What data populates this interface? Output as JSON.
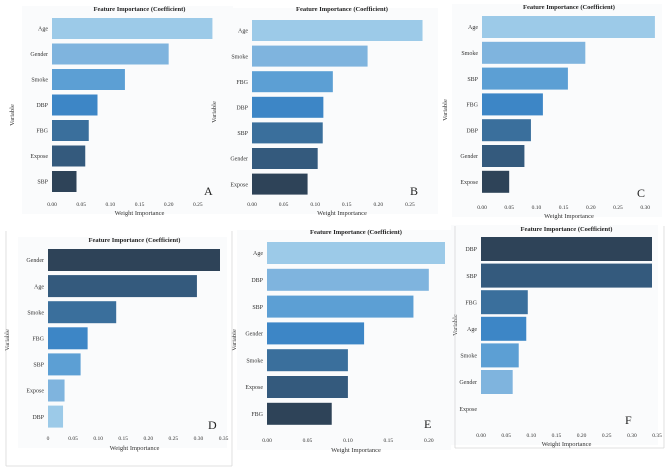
{
  "palette": [
    "#9ccae8",
    "#7fb4de",
    "#5c9fd4",
    "#3d86c6",
    "#3a6f9c",
    "#345a7d",
    "#2e4358"
  ],
  "chart_data": [
    {
      "type": "bar",
      "orientation": "horizontal",
      "panel_letter": "A",
      "title": "Feature Importance (Coefficient)",
      "xlabel": "Weight Importance",
      "ylabel": "Variable",
      "categories": [
        "Age",
        "Gender",
        "Smoke",
        "DBP",
        "FBG",
        "Expose",
        "SBP"
      ],
      "values": [
        0.275,
        0.2,
        0.125,
        0.078,
        0.063,
        0.057,
        0.042
      ],
      "xlim": [
        0,
        0.3
      ],
      "ticks": [
        0,
        0.05,
        0.1,
        0.15,
        0.2,
        0.25
      ],
      "tick_labels": [
        "0.00",
        "0.05",
        "0.10",
        "0.15",
        "0.20",
        "0.25"
      ],
      "bar_colors": [
        "#9ccae8",
        "#7fb4de",
        "#5c9fd4",
        "#3d86c6",
        "#3a6f9c",
        "#345a7d",
        "#2e4358"
      ]
    },
    {
      "type": "bar",
      "orientation": "horizontal",
      "panel_letter": "B",
      "title": "Feature Importance (Coefficient)",
      "xlabel": "Weight Importance",
      "ylabel": "Variable",
      "categories": [
        "Age",
        "Smoke",
        "FBG",
        "DBP",
        "SBP",
        "Gender",
        "Expose"
      ],
      "values": [
        0.27,
        0.183,
        0.128,
        0.113,
        0.112,
        0.104,
        0.088
      ],
      "xlim": [
        0,
        0.285
      ],
      "ticks": [
        0,
        0.05,
        0.1,
        0.15,
        0.2,
        0.25
      ],
      "tick_labels": [
        "0.00",
        "0.05",
        "0.10",
        "0.15",
        "0.20",
        "0.25"
      ],
      "bar_colors": [
        "#9ccae8",
        "#7fb4de",
        "#5c9fd4",
        "#3d86c6",
        "#3a6f9c",
        "#345a7d",
        "#2e4358"
      ]
    },
    {
      "type": "bar",
      "orientation": "horizontal",
      "panel_letter": "C",
      "title": "Feature Importance (Coefficient)",
      "xlabel": "Weight Importance",
      "ylabel": "Variable",
      "categories": [
        "Age",
        "Smoke",
        "SBP",
        "FBG",
        "DBP",
        "Gender",
        "Expose"
      ],
      "values": [
        0.318,
        0.19,
        0.158,
        0.112,
        0.09,
        0.078,
        0.05
      ],
      "xlim": [
        0,
        0.32
      ],
      "ticks": [
        0,
        0.05,
        0.1,
        0.15,
        0.2,
        0.25,
        0.3
      ],
      "tick_labels": [
        "0.00",
        "0.05",
        "0.10",
        "0.15",
        "0.20",
        "0.25",
        "0.30"
      ],
      "bar_colors": [
        "#9ccae8",
        "#7fb4de",
        "#5c9fd4",
        "#3d86c6",
        "#3a6f9c",
        "#345a7d",
        "#2e4358"
      ]
    },
    {
      "type": "bar",
      "orientation": "horizontal",
      "panel_letter": "D",
      "title": "Feature Importance (Coefficient)",
      "xlabel": "Weight Importance",
      "ylabel": "Variable",
      "categories": [
        "Gender",
        "Age",
        "Smoke",
        "FBG",
        "SBP",
        "Expose",
        "DBP"
      ],
      "values": [
        0.343,
        0.297,
        0.136,
        0.079,
        0.065,
        0.033,
        0.03
      ],
      "xlim": [
        0,
        0.345
      ],
      "ticks": [
        0,
        0.05,
        0.1,
        0.15,
        0.2,
        0.25,
        0.3,
        0.35
      ],
      "tick_labels": [
        "0",
        "0.05",
        "0.10",
        "0.15",
        "0.20",
        "0.25",
        "0.30",
        "0.35"
      ],
      "bar_colors": [
        "#2e4358",
        "#345a7d",
        "#3a6f9c",
        "#3d86c6",
        "#5c9fd4",
        "#7fb4de",
        "#9ccae8"
      ]
    },
    {
      "type": "bar",
      "orientation": "horizontal",
      "panel_letter": "E",
      "title": "Feature Importance (Coefficient)",
      "xlabel": "Weight Importance",
      "ylabel": "Variable",
      "categories": [
        "Age",
        "DBP",
        "SBP",
        "Gender",
        "Smoke",
        "Expose",
        "FBG"
      ],
      "values": [
        0.22,
        0.2,
        0.181,
        0.12,
        0.1,
        0.1,
        0.08
      ],
      "xlim": [
        0,
        0.22
      ],
      "ticks": [
        0,
        0.05,
        0.1,
        0.15,
        0.2
      ],
      "tick_labels": [
        "0.00",
        "0.05",
        "0.10",
        "0.15",
        "0.20"
      ],
      "bar_colors": [
        "#9ccae8",
        "#7fb4de",
        "#5c9fd4",
        "#3d86c6",
        "#3a6f9c",
        "#345a7d",
        "#2e4358"
      ]
    },
    {
      "type": "bar",
      "orientation": "horizontal",
      "panel_letter": "F",
      "title": "Feature Importance (Coefficient)",
      "xlabel": "Weight Importance",
      "ylabel": "Variable",
      "categories": [
        "DBP",
        "SBP",
        "FBG",
        "Age",
        "Smoke",
        "Gender",
        "Expose"
      ],
      "values": [
        0.34,
        0.34,
        0.093,
        0.09,
        0.075,
        0.063,
        0
      ],
      "xlim": [
        0,
        0.34
      ],
      "ticks": [
        0,
        0.05,
        0.1,
        0.15,
        0.2,
        0.25,
        0.3,
        0.35
      ],
      "tick_labels": [
        "0.00",
        "0.05",
        "0.10",
        "0.15",
        "0.20",
        "0.25",
        "0.30",
        "0.35"
      ],
      "bar_colors": [
        "#2e4358",
        "#345a7d",
        "#3a6f9c",
        "#3d86c6",
        "#5c9fd4",
        "#7fb4de",
        "#9ccae8"
      ]
    }
  ]
}
